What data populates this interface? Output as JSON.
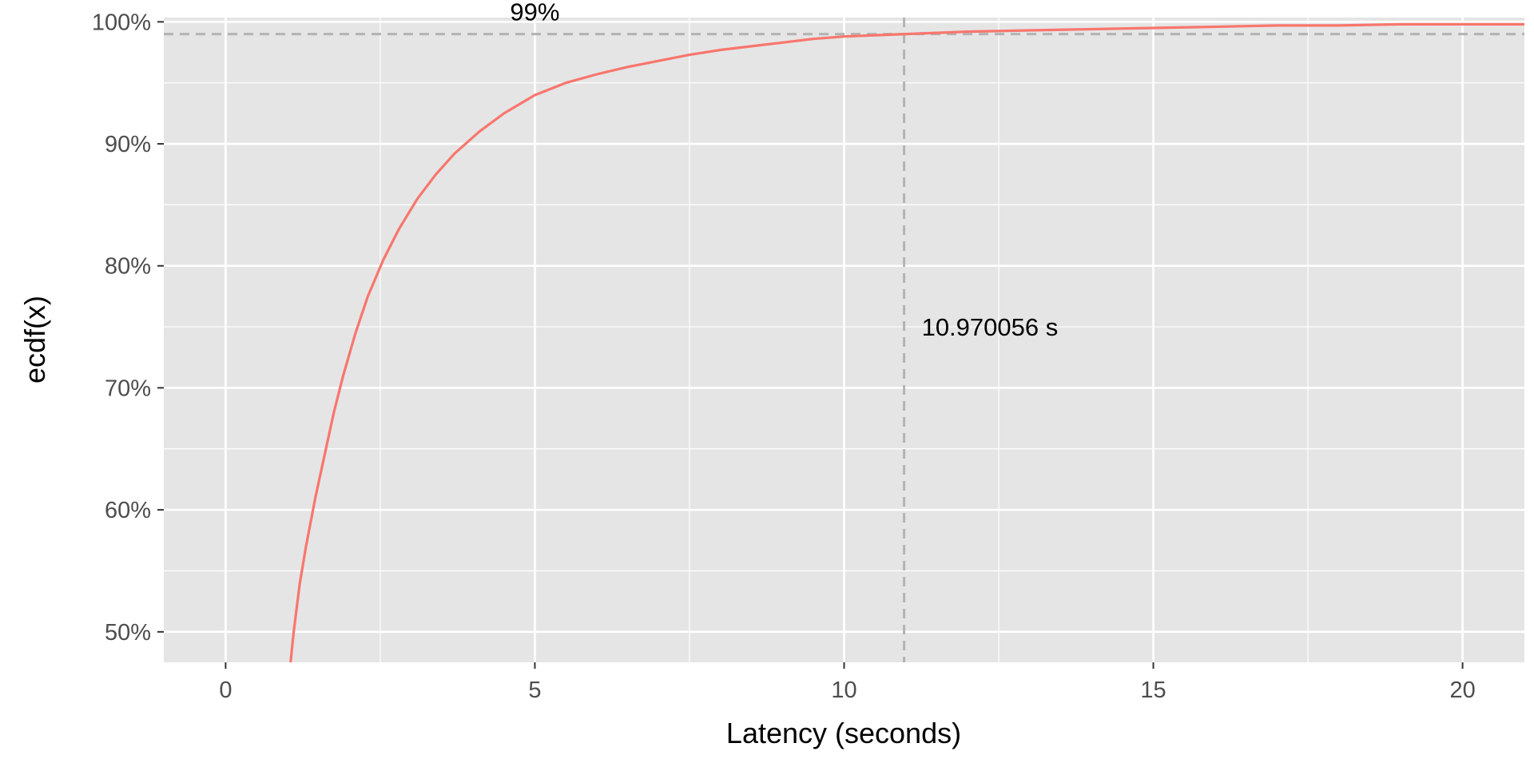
{
  "chart_data": {
    "type": "line",
    "title": "",
    "xlabel": "Latency (seconds)",
    "ylabel": "ecdf(x)",
    "xlim": [
      -1,
      21
    ],
    "ylim": [
      0.475,
      1.0035
    ],
    "x_ticks": [
      0,
      5,
      10,
      15,
      20
    ],
    "x_tick_labels": [
      "0",
      "5",
      "10",
      "15",
      "20"
    ],
    "y_ticks": [
      0.5,
      0.6,
      0.7,
      0.8,
      0.9,
      1.0
    ],
    "y_tick_labels": [
      "50%",
      "60%",
      "70%",
      "80%",
      "90%",
      "100%"
    ],
    "grid": true,
    "legend": "none",
    "colors": {
      "series": "#F8766D",
      "panel": "#E5E5E5",
      "grid": "#FFFFFF",
      "reference": "#B3B3B3"
    },
    "series": [
      {
        "x": [
          1.05,
          1.1,
          1.2,
          1.3,
          1.45,
          1.6,
          1.75,
          1.9,
          2.1,
          2.3,
          2.55,
          2.8,
          3.1,
          3.4,
          3.7,
          4.1,
          4.5,
          5.0,
          5.5,
          6.0,
          6.5,
          7.0,
          7.5,
          8.0,
          8.5,
          9.0,
          9.5,
          10.0,
          10.5,
          11.0,
          11.5,
          12.0,
          13.0,
          14.0,
          15.0,
          16.0,
          17.0,
          18.0,
          19.0,
          20.0,
          21.0
        ],
        "y": [
          0.475,
          0.5,
          0.54,
          0.57,
          0.61,
          0.645,
          0.68,
          0.71,
          0.745,
          0.775,
          0.805,
          0.83,
          0.855,
          0.875,
          0.892,
          0.91,
          0.925,
          0.94,
          0.95,
          0.957,
          0.963,
          0.968,
          0.973,
          0.977,
          0.98,
          0.983,
          0.986,
          0.988,
          0.989,
          0.99,
          0.991,
          0.992,
          0.993,
          0.994,
          0.995,
          0.996,
          0.997,
          0.997,
          0.998,
          0.998,
          0.998
        ]
      }
    ],
    "reference_lines": {
      "hline": {
        "y": 0.99,
        "label": "99%",
        "label_x": 5
      },
      "vline": {
        "x": 10.970056,
        "label": "10.970056 s",
        "label_y": 0.75
      }
    }
  }
}
